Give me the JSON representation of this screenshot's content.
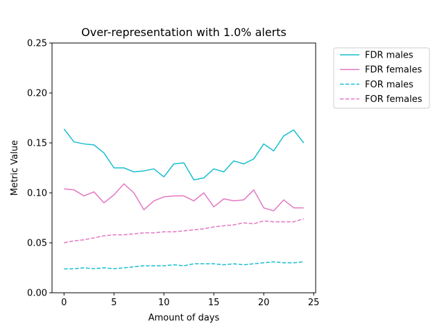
{
  "chart_data": {
    "type": "line",
    "title": "Over-representation with 1.0% alerts",
    "xlabel": "Amount of days",
    "ylabel": "Metric Value",
    "xlim": [
      -1.2,
      25.2
    ],
    "ylim": [
      0,
      0.25
    ],
    "xticks": [
      0,
      5,
      10,
      15,
      20,
      25
    ],
    "xtick_labels": [
      "0",
      "5",
      "10",
      "15",
      "20",
      "25"
    ],
    "yticks": [
      0,
      0.05,
      0.1,
      0.15,
      0.2,
      0.25
    ],
    "ytick_labels": [
      "0.00",
      "0.05",
      "0.10",
      "0.15",
      "0.20",
      "0.25"
    ],
    "grid": false,
    "legend_position": "outside-top-right",
    "x": [
      0,
      1,
      2,
      3,
      4,
      5,
      6,
      7,
      8,
      9,
      10,
      11,
      12,
      13,
      14,
      15,
      16,
      17,
      18,
      19,
      20,
      21,
      22,
      23,
      24
    ],
    "series": [
      {
        "name": "FDR males",
        "color": "#17becf",
        "linestyle": "solid",
        "values": [
          0.164,
          0.151,
          0.149,
          0.148,
          0.14,
          0.125,
          0.125,
          0.121,
          0.122,
          0.124,
          0.116,
          0.129,
          0.13,
          0.113,
          0.115,
          0.124,
          0.121,
          0.132,
          0.129,
          0.134,
          0.149,
          0.142,
          0.157,
          0.163,
          0.15
        ]
      },
      {
        "name": "FDR females",
        "color": "#e377c2",
        "linestyle": "solid",
        "values": [
          0.104,
          0.103,
          0.097,
          0.101,
          0.09,
          0.098,
          0.109,
          0.1,
          0.083,
          0.092,
          0.096,
          0.097,
          0.097,
          0.092,
          0.1,
          0.086,
          0.094,
          0.092,
          0.093,
          0.103,
          0.085,
          0.082,
          0.093,
          0.085,
          0.085
        ]
      },
      {
        "name": "FOR males",
        "color": "#17becf",
        "linestyle": "dashed",
        "values": [
          0.024,
          0.024,
          0.025,
          0.024,
          0.025,
          0.024,
          0.025,
          0.026,
          0.027,
          0.027,
          0.027,
          0.028,
          0.027,
          0.029,
          0.029,
          0.029,
          0.028,
          0.029,
          0.028,
          0.029,
          0.03,
          0.031,
          0.03,
          0.03,
          0.031
        ]
      },
      {
        "name": "FOR females",
        "color": "#e377c2",
        "linestyle": "dashed",
        "values": [
          0.05,
          0.052,
          0.053,
          0.055,
          0.057,
          0.058,
          0.058,
          0.059,
          0.06,
          0.06,
          0.061,
          0.061,
          0.062,
          0.063,
          0.064,
          0.066,
          0.067,
          0.068,
          0.07,
          0.069,
          0.072,
          0.071,
          0.071,
          0.071,
          0.074
        ]
      }
    ]
  }
}
